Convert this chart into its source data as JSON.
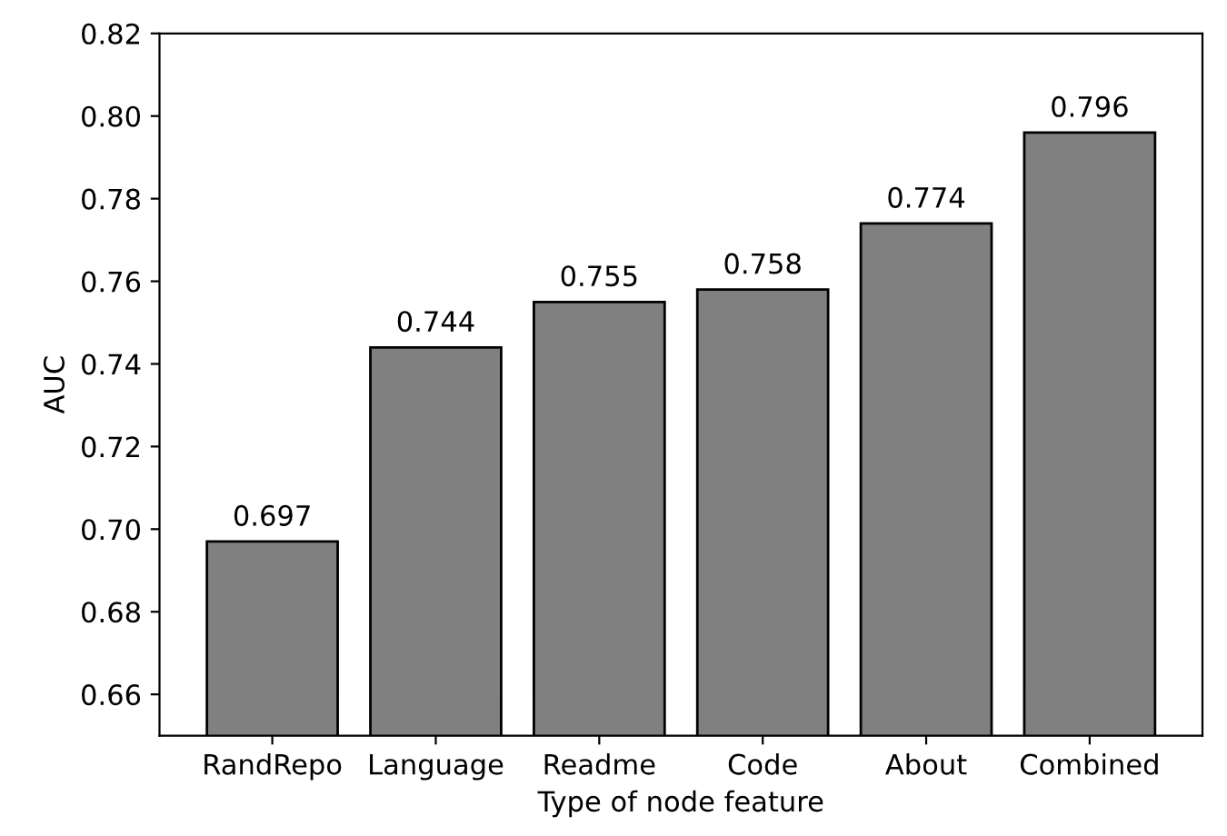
{
  "chart_data": {
    "type": "bar",
    "xlabel": "Type of node feature",
    "ylabel": "AUC",
    "categories": [
      "RandRepo",
      "Language",
      "Readme",
      "Code",
      "About",
      "Combined"
    ],
    "values": [
      0.697,
      0.744,
      0.755,
      0.758,
      0.774,
      0.796
    ],
    "color": "#808080",
    "data_labels": true,
    "grid": false,
    "ylim": [
      0.65,
      0.82
    ],
    "yticks": [
      0.66,
      0.68,
      {
        "value": 0.7,
        "label": "0.70"
      },
      0.72,
      0.74,
      0.76,
      0.78,
      {
        "value": 0.8,
        "label": "0.80"
      },
      0.82
    ]
  }
}
